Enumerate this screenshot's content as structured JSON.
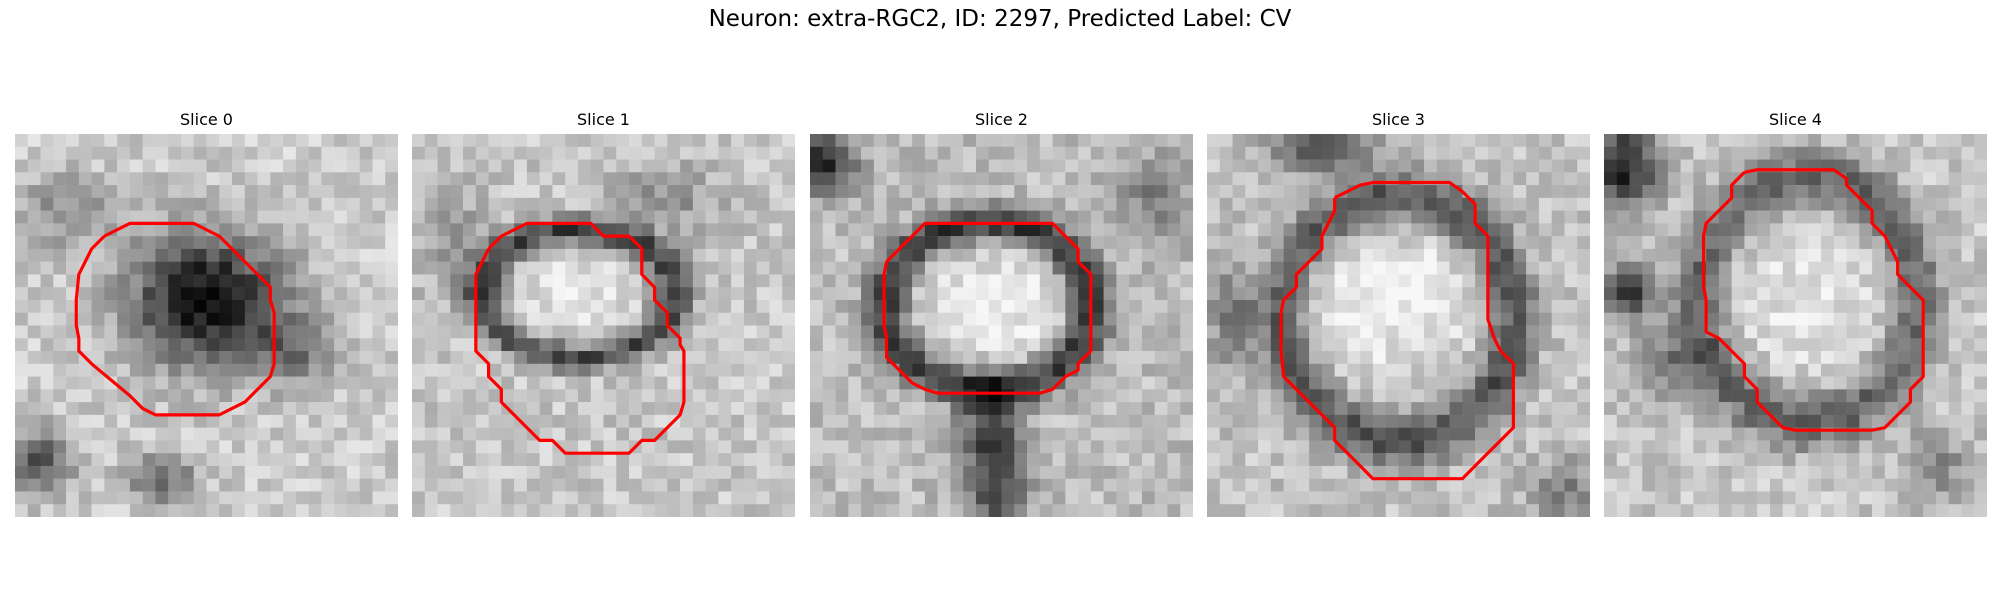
{
  "figure": {
    "title": "Neuron: extra-RGC2, ID: 2297, Predicted Label: CV"
  },
  "colors": {
    "contour": "#ff0000",
    "background": "#ffffff"
  },
  "panels": [
    {
      "title": "Slice 0"
    },
    {
      "title": "Slice 1"
    },
    {
      "title": "Slice 2"
    },
    {
      "title": "Slice 3"
    },
    {
      "title": "Slice 4"
    }
  ]
}
